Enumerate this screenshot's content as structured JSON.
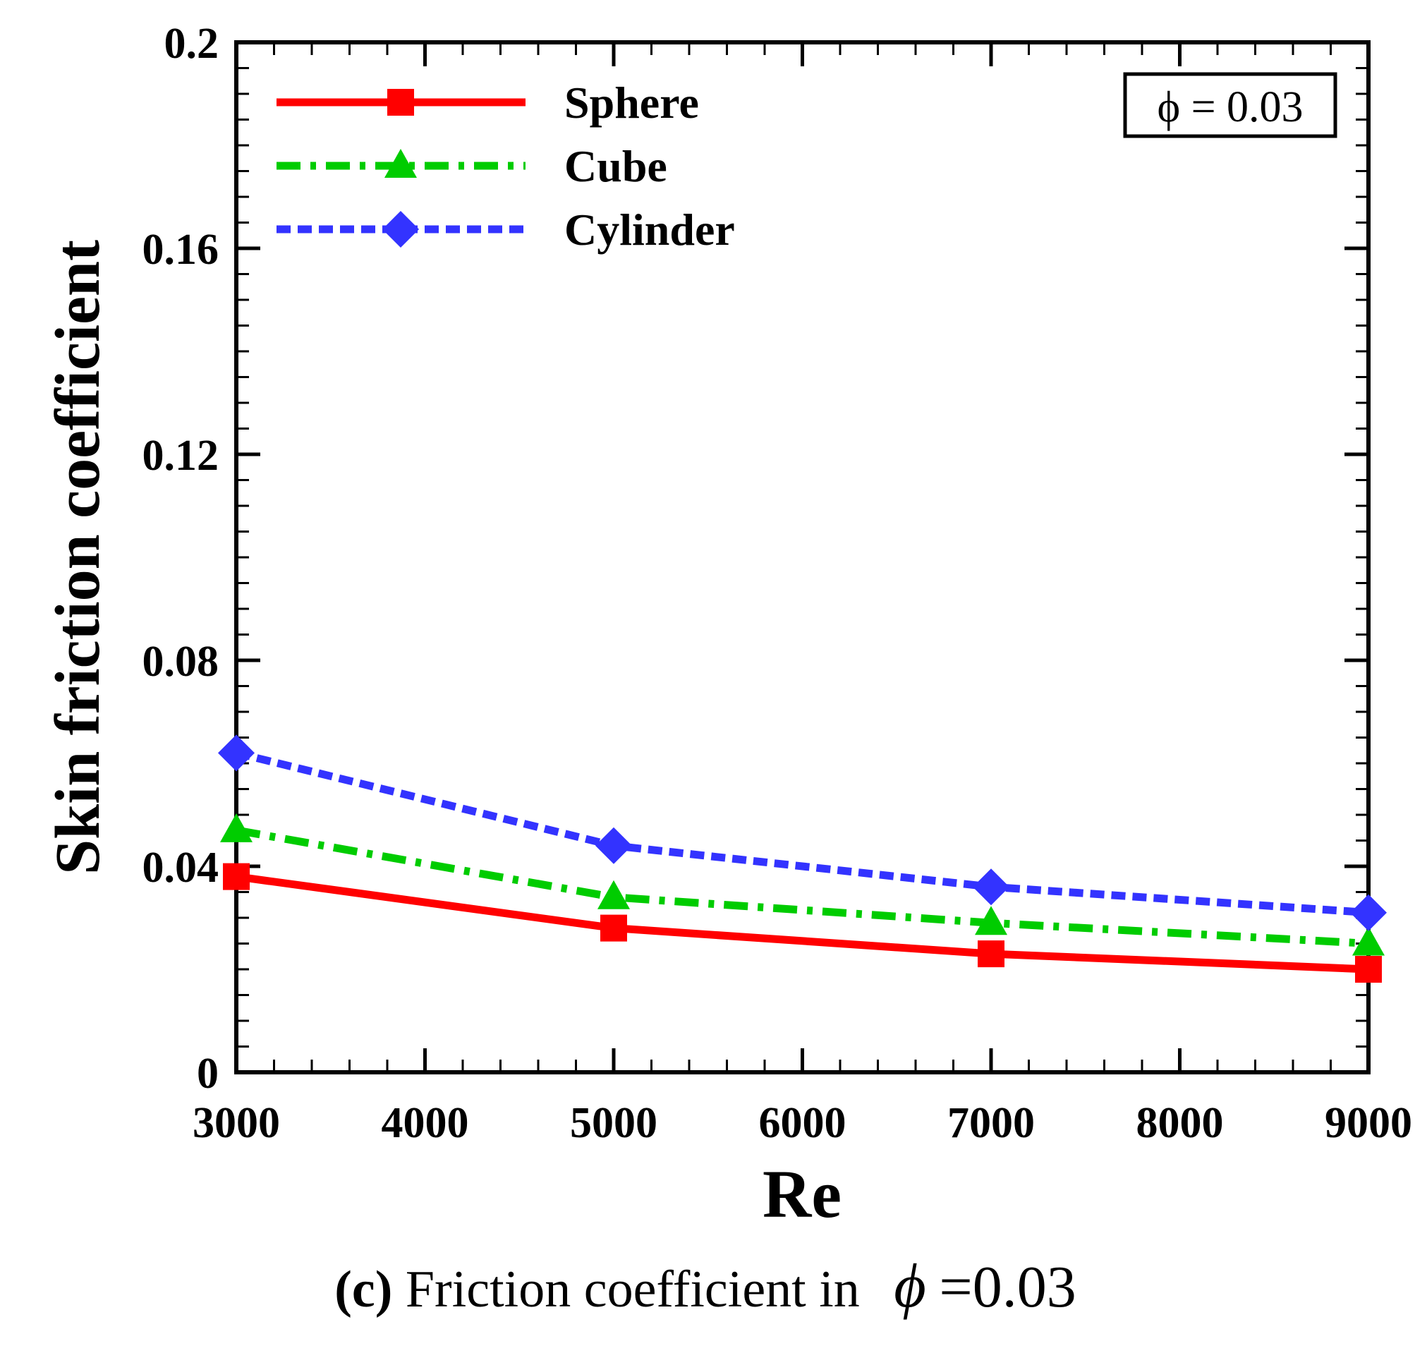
{
  "chart_data": {
    "type": "line",
    "title": "",
    "xlabel": "Re",
    "ylabel": "Skin friction coefficient",
    "xlim": [
      3000,
      9000
    ],
    "ylim": [
      0,
      0.2
    ],
    "x_ticks": [
      "3000",
      "4000",
      "5000",
      "6000",
      "7000",
      "8000",
      "9000"
    ],
    "y_ticks": [
      "0",
      "0.04",
      "0.08",
      "0.12",
      "0.16",
      "0.2"
    ],
    "x": [
      3000,
      5000,
      7000,
      9000
    ],
    "series": [
      {
        "name": "Sphere",
        "values": [
          0.038,
          0.028,
          0.023,
          0.02
        ],
        "color": "#ff0000",
        "marker": "square",
        "dash": "solid"
      },
      {
        "name": "Cube",
        "values": [
          0.047,
          0.034,
          0.029,
          0.025
        ],
        "color": "#00cc00",
        "marker": "triangle",
        "dash": "dashdot"
      },
      {
        "name": "Cylinder",
        "values": [
          0.062,
          0.044,
          0.036,
          0.031
        ],
        "color": "#3333ff",
        "marker": "diamond",
        "dash": "dashed"
      }
    ],
    "legend_position": "top-left",
    "annotation": "ϕ = 0.03",
    "grid": false
  },
  "caption": {
    "label": "(c)",
    "text": "Friction coefficient in",
    "symbol": "ϕ",
    "value": "=0.03"
  }
}
